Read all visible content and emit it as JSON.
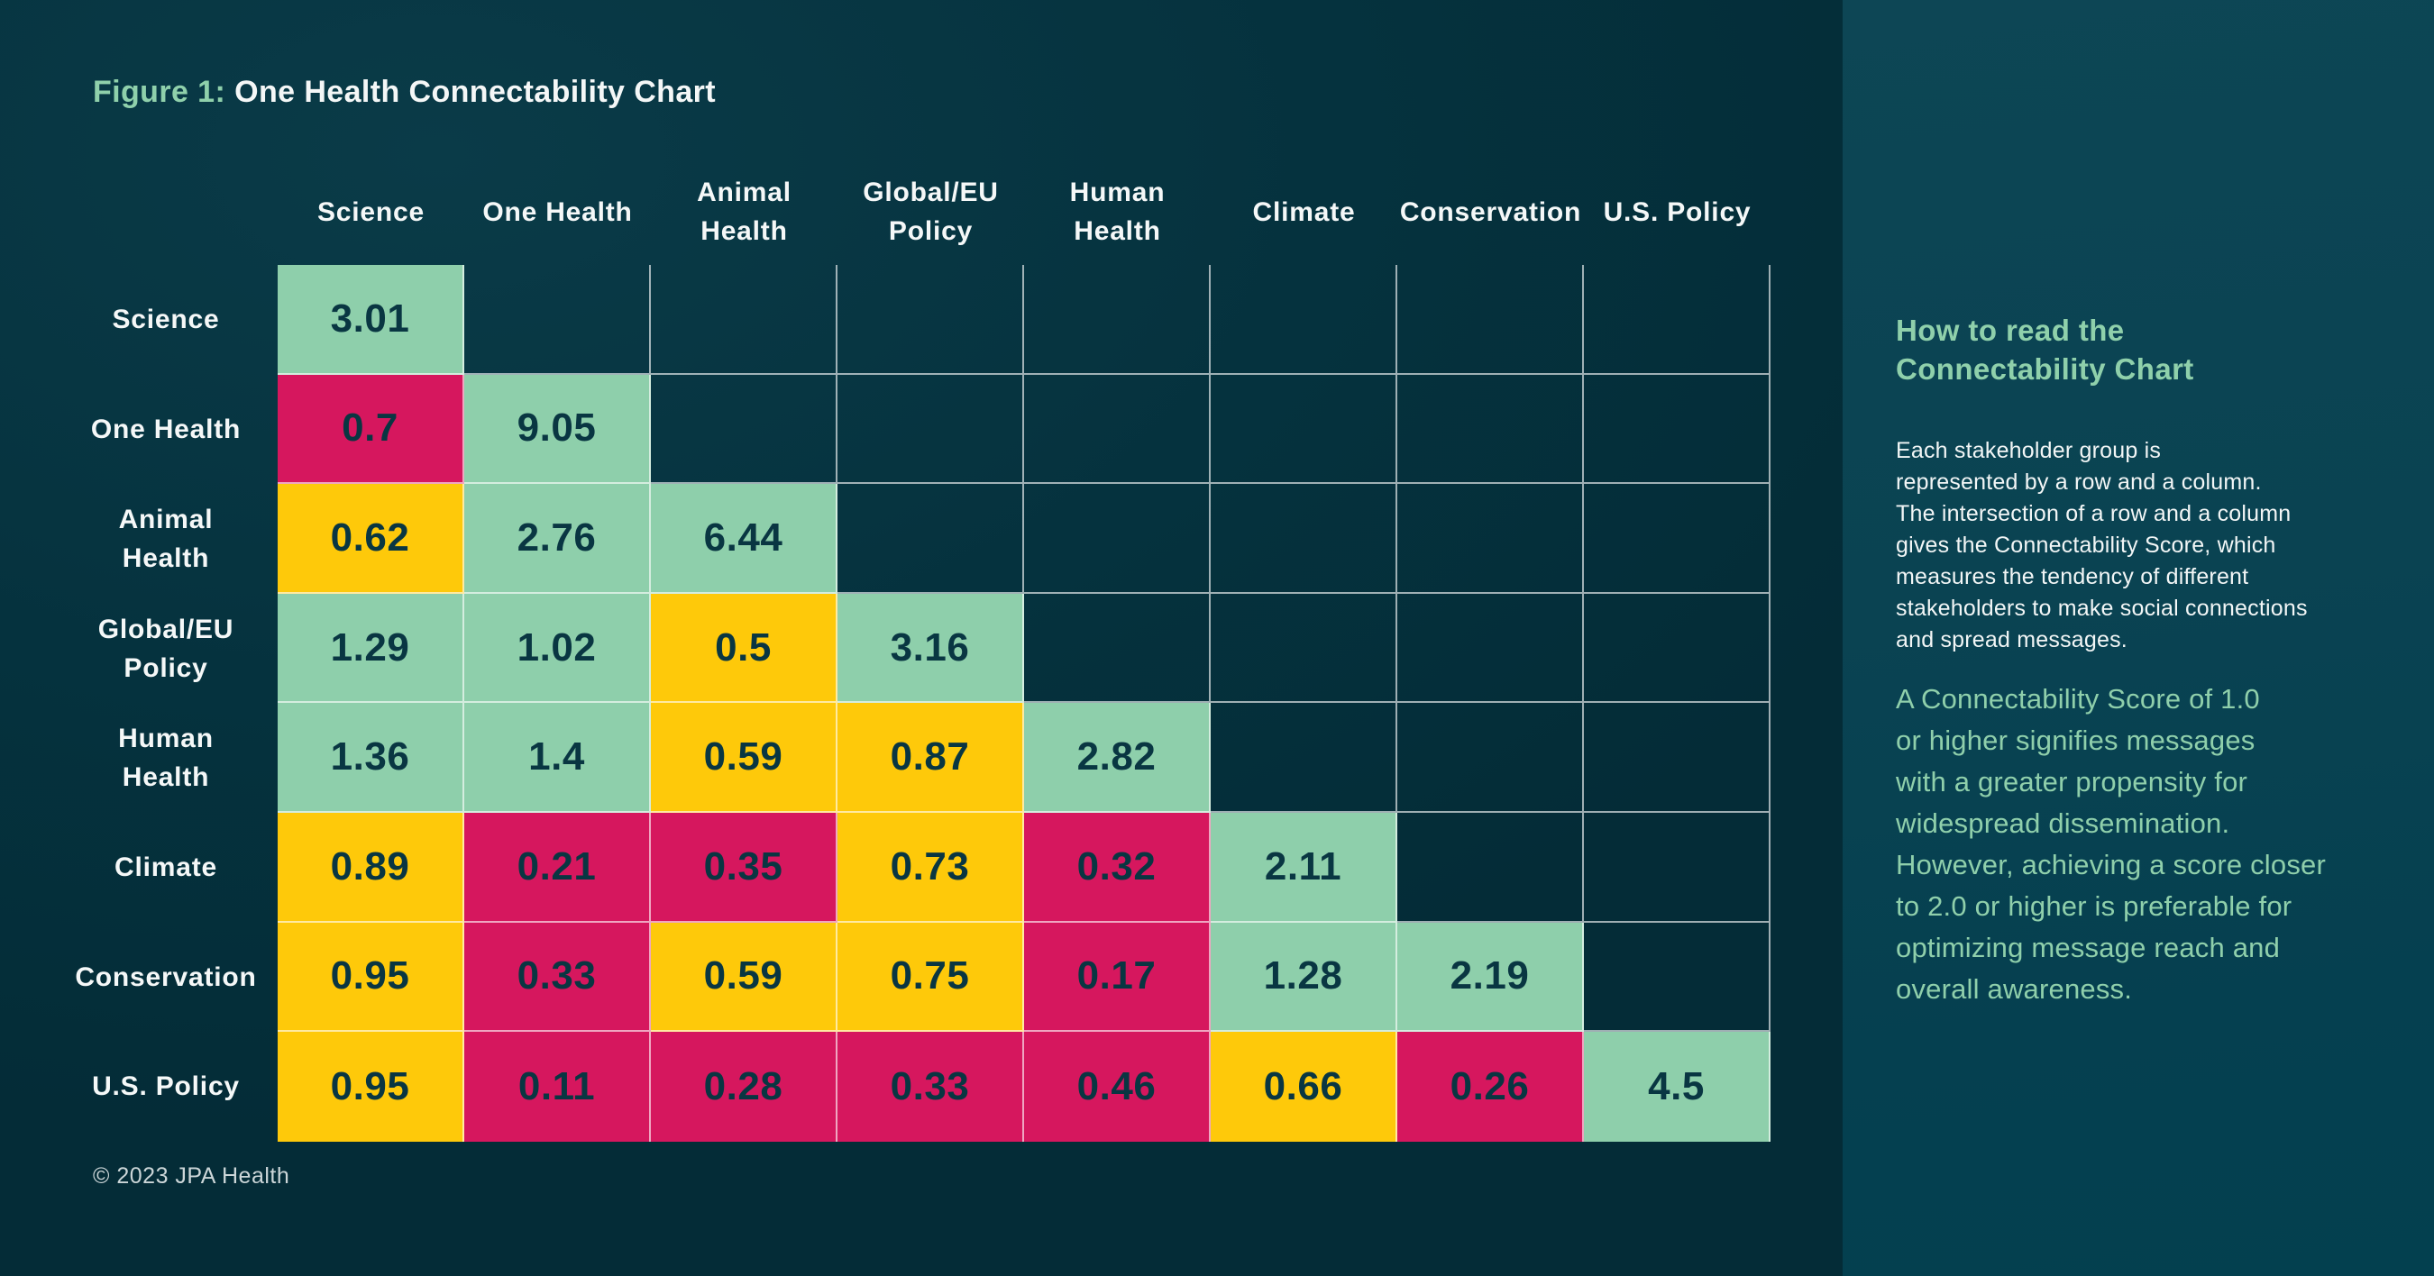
{
  "figure_header": {
    "label": "Figure 1:",
    "title": "One Health Connectability Chart"
  },
  "chart_data": {
    "type": "heatmap",
    "title": "One Health Connectability Chart",
    "layout": "lower-triangular matrix; upper triangle blank with thin gridlines",
    "columns": [
      "Science",
      "One Health",
      "Animal Health",
      "Global/EU Policy",
      "Human Health",
      "Climate",
      "Conservation",
      "U.S. Policy"
    ],
    "rows": [
      "Science",
      "One Health",
      "Animal Health",
      "Global/EU Policy",
      "Human Health",
      "Climate",
      "Conservation",
      "U.S. Policy"
    ],
    "cells": [
      [
        {
          "value": "3.01",
          "color": "green"
        }
      ],
      [
        {
          "value": "0.7",
          "color": "red"
        },
        {
          "value": "9.05",
          "color": "green"
        }
      ],
      [
        {
          "value": "0.62",
          "color": "yellow"
        },
        {
          "value": "2.76",
          "color": "green"
        },
        {
          "value": "6.44",
          "color": "green"
        }
      ],
      [
        {
          "value": "1.29",
          "color": "green"
        },
        {
          "value": "1.02",
          "color": "green"
        },
        {
          "value": "0.5",
          "color": "yellow"
        },
        {
          "value": "3.16",
          "color": "green"
        }
      ],
      [
        {
          "value": "1.36",
          "color": "green"
        },
        {
          "value": "1.4",
          "color": "green"
        },
        {
          "value": "0.59",
          "color": "yellow"
        },
        {
          "value": "0.87",
          "color": "yellow"
        },
        {
          "value": "2.82",
          "color": "green"
        }
      ],
      [
        {
          "value": "0.89",
          "color": "yellow"
        },
        {
          "value": "0.21",
          "color": "red"
        },
        {
          "value": "0.35",
          "color": "red"
        },
        {
          "value": "0.73",
          "color": "yellow"
        },
        {
          "value": "0.32",
          "color": "red"
        },
        {
          "value": "2.11",
          "color": "green"
        }
      ],
      [
        {
          "value": "0.95",
          "color": "yellow"
        },
        {
          "value": "0.33",
          "color": "red"
        },
        {
          "value": "0.59",
          "color": "yellow"
        },
        {
          "value": "0.75",
          "color": "yellow"
        },
        {
          "value": "0.17",
          "color": "red"
        },
        {
          "value": "1.28",
          "color": "green"
        },
        {
          "value": "2.19",
          "color": "green"
        }
      ],
      [
        {
          "value": "0.95",
          "color": "yellow"
        },
        {
          "value": "0.11",
          "color": "red"
        },
        {
          "value": "0.28",
          "color": "red"
        },
        {
          "value": "0.33",
          "color": "red"
        },
        {
          "value": "0.46",
          "color": "red"
        },
        {
          "value": "0.66",
          "color": "yellow"
        },
        {
          "value": "0.26",
          "color": "red"
        },
        {
          "value": "4.5",
          "color": "green"
        }
      ]
    ],
    "palette": {
      "green": "#8ecfab",
      "yellow": "#fec90a",
      "red": "#d6175e"
    }
  },
  "display": {
    "column_labels": [
      "Science",
      "One Health",
      "Animal\nHealth",
      "Global/EU\nPolicy",
      "Human\nHealth",
      "Climate",
      "Conservation",
      "U.S. Policy"
    ],
    "row_labels": [
      "Science",
      "One Health",
      "Animal\nHealth",
      "Global/EU\nPolicy",
      "Human\nHealth",
      "Climate",
      "Conservation",
      "U.S. Policy"
    ]
  },
  "sidebar": {
    "heading": "How to read the\nConnectability Chart",
    "body": "Each stakeholder group is\nrepresented by a row and a column.\nThe intersection of a row and a column\ngives the Connectability Score, which\nmeasures the tendency of different\nstakeholders to make social connections\nand spread messages.",
    "callout": "A Connectability Score of 1.0\nor higher signifies messages\nwith a greater propensity for\nwidespread dissemination.\nHowever, achieving a score closer\nto 2.0 or higher is preferable for\noptimizing message reach and\noverall awareness."
  },
  "footer": {
    "copyright": "© 2023 JPA Health"
  },
  "colors": {
    "background": "#05313d",
    "panel_background": "#0a4352",
    "accent_text_green": "#8fd0ab",
    "cell_text": "#093642",
    "header_text": "#f5f8f8",
    "footer_text": "#ccd6d8"
  }
}
